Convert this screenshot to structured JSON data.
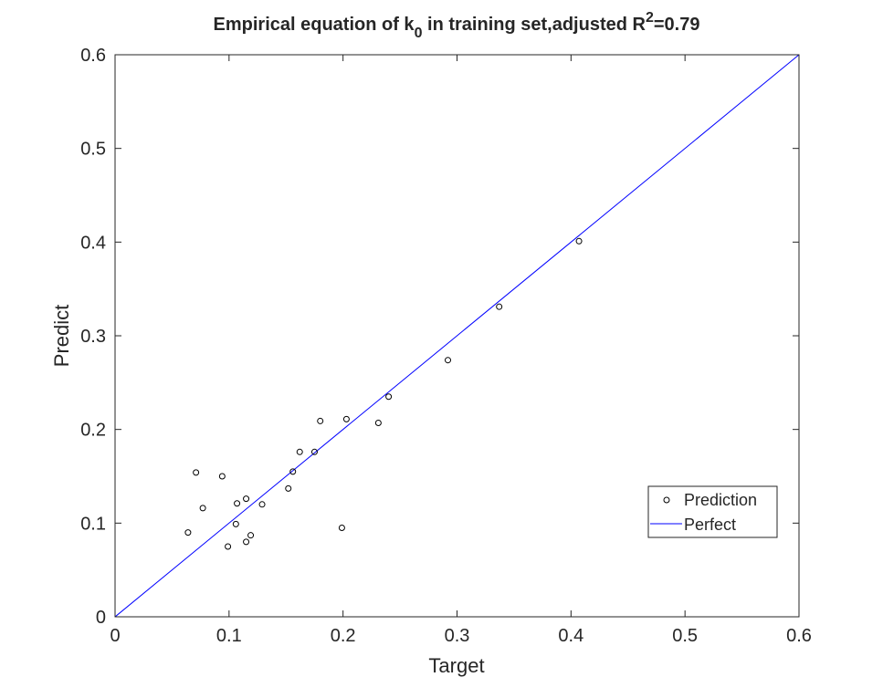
{
  "chart_data": {
    "type": "scatter",
    "title_main": "Empirical equation of k",
    "title_sub": "0",
    "title_mid": " in training set,adjusted R",
    "title_sup": "2",
    "title_end": "=0.79",
    "xlabel": "Target",
    "ylabel": "Predict",
    "xlim": [
      0,
      0.6
    ],
    "ylim": [
      0,
      0.6
    ],
    "xticks": [
      "0",
      "0.1",
      "0.2",
      "0.3",
      "0.4",
      "0.5",
      "0.6"
    ],
    "yticks": [
      "0",
      "0.1",
      "0.2",
      "0.3",
      "0.4",
      "0.5",
      "0.6"
    ],
    "grid": false,
    "legend_position": "right",
    "colors": {
      "points": "#000000",
      "line": "#0000ff"
    },
    "series": [
      {
        "name": "Prediction",
        "type": "scatter",
        "points": [
          [
            0.064,
            0.09
          ],
          [
            0.071,
            0.154
          ],
          [
            0.077,
            0.116
          ],
          [
            0.094,
            0.15
          ],
          [
            0.099,
            0.075
          ],
          [
            0.106,
            0.099
          ],
          [
            0.107,
            0.121
          ],
          [
            0.115,
            0.126
          ],
          [
            0.115,
            0.08
          ],
          [
            0.119,
            0.087
          ],
          [
            0.129,
            0.12
          ],
          [
            0.152,
            0.137
          ],
          [
            0.156,
            0.155
          ],
          [
            0.162,
            0.176
          ],
          [
            0.175,
            0.176
          ],
          [
            0.18,
            0.209
          ],
          [
            0.199,
            0.095
          ],
          [
            0.203,
            0.211
          ],
          [
            0.231,
            0.207
          ],
          [
            0.24,
            0.235
          ],
          [
            0.292,
            0.274
          ],
          [
            0.337,
            0.331
          ],
          [
            0.407,
            0.401
          ]
        ]
      },
      {
        "name": "Perfect",
        "type": "line",
        "points": [
          [
            0,
            0
          ],
          [
            0.6,
            0.6
          ]
        ]
      }
    ]
  }
}
